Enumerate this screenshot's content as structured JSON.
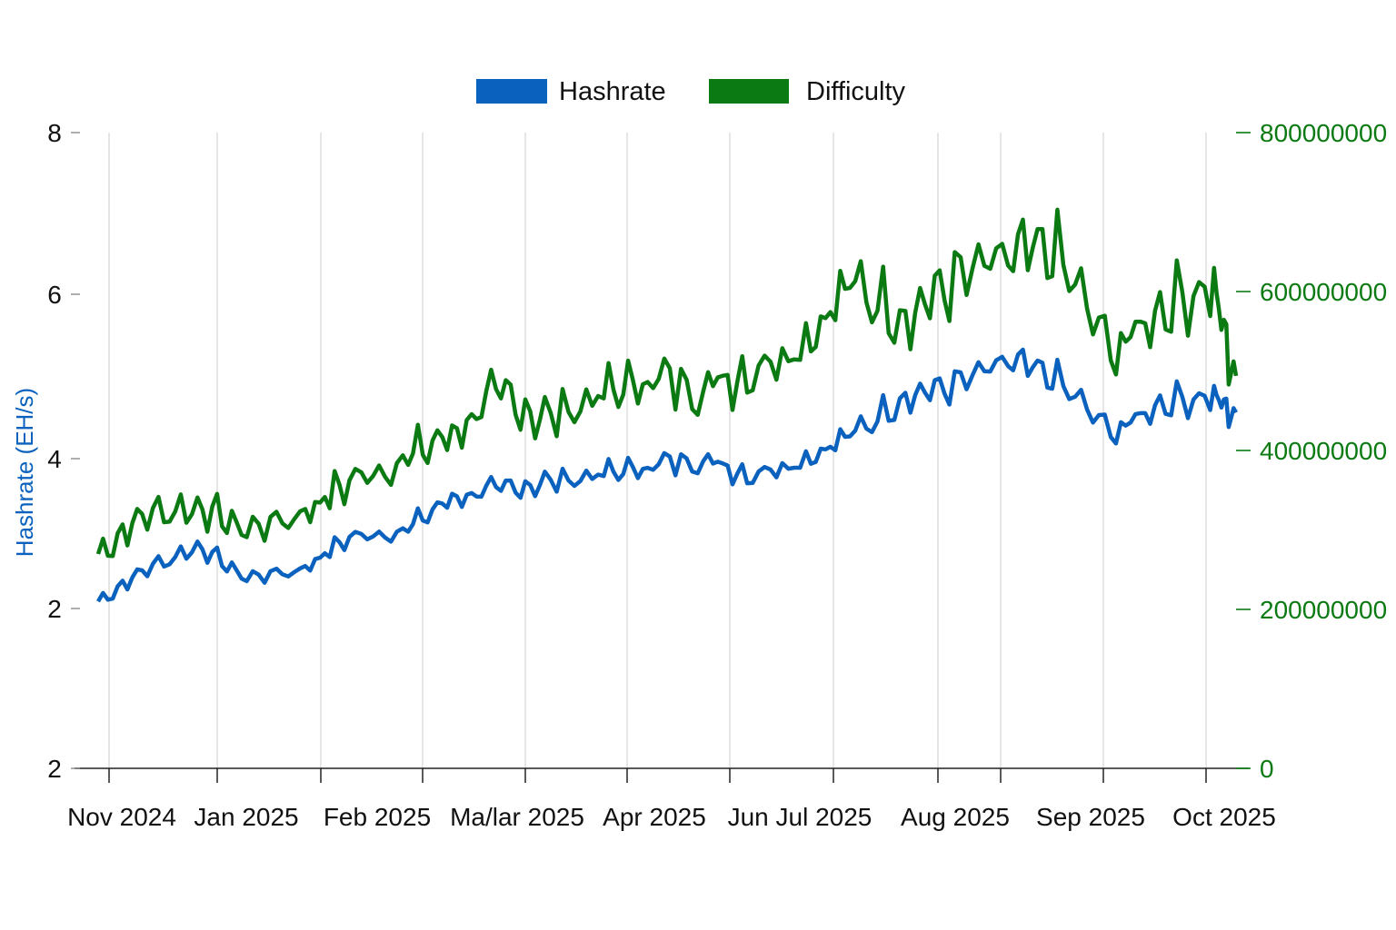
{
  "chart_data": {
    "type": "line",
    "title": "",
    "xlabel": "",
    "ylabel": "Hashrate (EH/s)",
    "y2label": "",
    "ylim": [
      0,
      8
    ],
    "y2lim": [
      0,
      800000000
    ],
    "grid": "vertical",
    "legend_placement": "top-center",
    "x_tick_labels": [
      "Nov 2024",
      "Jan 2025",
      "Feb 2025",
      "Ma/lar 2025",
      "Apr 2025",
      "Jun Jul 2025",
      "Aug 2025",
      "Sep 2025",
      "Oct 2025"
    ],
    "y_tick_labels": [
      "2",
      "2",
      "4",
      "6",
      "8"
    ],
    "y2_tick_labels": [
      "0",
      "200000000",
      "400000000",
      "600000000",
      "800000000"
    ],
    "colors": {
      "hashrate": "#0a62be",
      "difficulty": "#0c7a12"
    },
    "x": [
      "2024-11-01",
      "2024-11-15",
      "2024-12-01",
      "2024-12-15",
      "2025-01-01",
      "2025-01-15",
      "2025-02-01",
      "2025-02-15",
      "2025-03-01",
      "2025-03-15",
      "2025-04-01",
      "2025-04-15",
      "2025-05-01",
      "2025-05-15",
      "2025-06-01",
      "2025-06-15",
      "2025-07-01",
      "2025-07-15",
      "2025-08-01",
      "2025-08-15",
      "2025-09-01",
      "2025-09-15",
      "2025-10-01",
      "2025-10-08"
    ],
    "series": [
      {
        "name": "Hashrate",
        "axis": "left",
        "values": [
          2.1,
          2.5,
          2.8,
          2.4,
          2.5,
          2.9,
          3.0,
          3.4,
          3.5,
          3.6,
          3.7,
          3.8,
          3.9,
          3.7,
          3.9,
          4.2,
          4.7,
          4.8,
          5.1,
          4.9,
          4.2,
          4.6,
          4.7,
          4.4
        ]
      },
      {
        "name": "Difficulty",
        "axis": "right",
        "values": [
          270000000,
          320000000,
          330000000,
          300000000,
          320000000,
          360000000,
          390000000,
          420000000,
          470000000,
          440000000,
          470000000,
          490000000,
          480000000,
          500000000,
          540000000,
          610000000,
          570000000,
          610000000,
          640000000,
          650000000,
          520000000,
          580000000,
          610000000,
          480000000
        ]
      }
    ]
  }
}
